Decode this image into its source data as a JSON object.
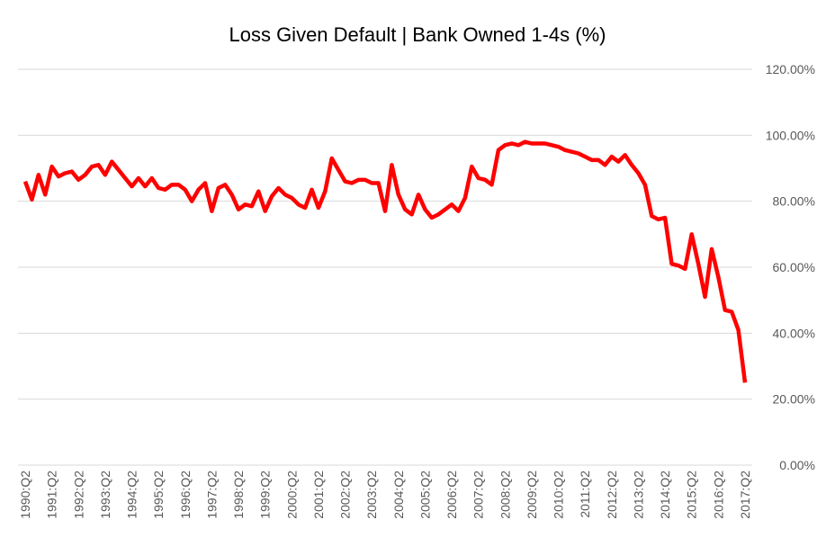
{
  "chart_data": {
    "type": "line",
    "title": "Loss Given Default | Bank Owned 1-4s (%)",
    "categories": [
      "1990:Q2",
      null,
      null,
      null,
      "1991:Q2",
      null,
      null,
      null,
      "1992:Q2",
      null,
      null,
      null,
      "1993:Q2",
      null,
      null,
      null,
      "1994:Q2",
      null,
      null,
      null,
      "1995:Q2",
      null,
      null,
      null,
      "1996:Q2",
      null,
      null,
      null,
      "1997:Q2",
      null,
      null,
      null,
      "1998:Q2",
      null,
      null,
      null,
      "1999:Q2",
      null,
      null,
      null,
      "2000:Q2",
      null,
      null,
      null,
      "2001:Q2",
      null,
      null,
      null,
      "2002:Q2",
      null,
      null,
      null,
      "2003:Q2",
      null,
      null,
      null,
      "2004:Q2",
      null,
      null,
      null,
      "2005:Q2",
      null,
      null,
      null,
      "2006:Q2",
      null,
      null,
      null,
      "2007:Q2",
      null,
      null,
      null,
      "2008:Q2",
      null,
      null,
      null,
      "2009:Q2",
      null,
      null,
      null,
      "2010:Q2",
      null,
      null,
      null,
      "2011:Q2",
      null,
      null,
      null,
      "2012:Q2",
      null,
      null,
      null,
      "2013:Q2",
      null,
      null,
      null,
      "2014:Q2",
      null,
      null,
      null,
      "2015:Q2",
      null,
      null,
      null,
      "2016:Q2",
      null,
      null,
      null,
      "2017:Q2"
    ],
    "values": [
      86,
      80.5,
      88,
      82,
      90.5,
      87.5,
      88.5,
      89,
      86.5,
      88,
      90.5,
      91,
      88,
      92,
      89.5,
      87,
      84.5,
      87,
      84.5,
      87,
      84,
      83.5,
      85,
      85,
      83.5,
      80,
      83.5,
      85.5,
      77,
      84,
      85,
      82,
      77.5,
      79,
      78.5,
      83,
      77,
      81.5,
      84,
      82,
      81,
      79,
      78,
      83.5,
      78,
      83,
      93,
      89.5,
      86,
      85.5,
      86.5,
      86.5,
      85.5,
      85.5,
      77,
      91,
      82,
      77.5,
      76,
      82,
      77.5,
      75,
      76,
      77.5,
      79,
      77,
      81,
      90.5,
      87,
      86.5,
      85,
      95.5,
      97,
      97.5,
      97,
      98,
      97.5,
      97.5,
      97.5,
      97,
      96.5,
      95.5,
      95,
      94.5,
      93.5,
      92.5,
      92.5,
      91,
      93.5,
      92,
      94,
      91,
      88.5,
      85,
      75.5,
      74.5,
      75,
      61,
      60.5,
      59.5,
      70,
      61,
      51,
      65.5,
      57,
      47,
      46.5,
      41,
      25
    ],
    "color": "#ff0000",
    "ylim": [
      0,
      120
    ],
    "yticks": [
      {
        "value": 0,
        "label": "0.00%"
      },
      {
        "value": 20,
        "label": "20.00%"
      },
      {
        "value": 40,
        "label": "40.00%"
      },
      {
        "value": 60,
        "label": "60.00%"
      },
      {
        "value": 80,
        "label": "80.00%"
      },
      {
        "value": 100,
        "label": "100.00%"
      },
      {
        "value": 120,
        "label": "120.00%"
      }
    ],
    "grid": true
  }
}
